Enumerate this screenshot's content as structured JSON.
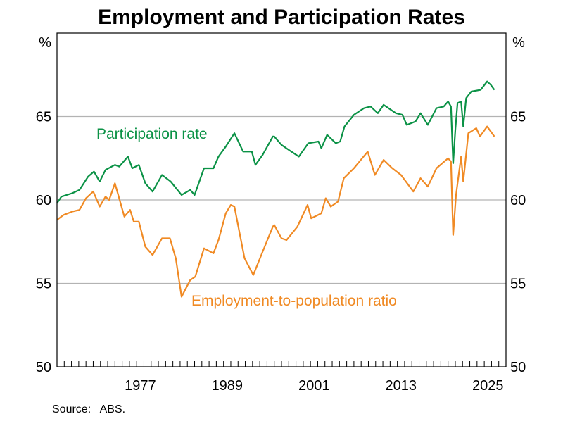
{
  "chart_data": {
    "type": "line",
    "title": "Employment and Participation Rates",
    "ylabel_left": "%",
    "ylabel_right": "%",
    "xlim": [
      1966,
      2028
    ],
    "ylim": [
      50,
      70
    ],
    "y_ticks": [
      50,
      55,
      60,
      65
    ],
    "x_tick_labels": [
      "1977",
      "1989",
      "2001",
      "2013",
      "2025"
    ],
    "grid": "horizontal",
    "source": "Source:   ABS.",
    "series": [
      {
        "name": "Participation rate",
        "color": "#0b9246",
        "points": [
          [
            1966.0,
            59.8
          ],
          [
            1966.6,
            60.2
          ],
          [
            1968.1,
            60.4
          ],
          [
            1969.1,
            60.6
          ],
          [
            1970.3,
            61.4
          ],
          [
            1971.1,
            61.7
          ],
          [
            1971.9,
            61.1
          ],
          [
            1972.7,
            61.8
          ],
          [
            1974.0,
            62.1
          ],
          [
            1974.6,
            62.0
          ],
          [
            1975.8,
            62.6
          ],
          [
            1976.4,
            61.9
          ],
          [
            1977.3,
            62.1
          ],
          [
            1978.2,
            61.0
          ],
          [
            1979.2,
            60.5
          ],
          [
            1980.5,
            61.5
          ],
          [
            1981.7,
            61.1
          ],
          [
            1983.2,
            60.3
          ],
          [
            1984.4,
            60.6
          ],
          [
            1985.0,
            60.3
          ],
          [
            1986.3,
            61.9
          ],
          [
            1987.6,
            61.9
          ],
          [
            1988.3,
            62.6
          ],
          [
            1989.3,
            63.2
          ],
          [
            1990.5,
            64.0
          ],
          [
            1991.7,
            62.9
          ],
          [
            1992.9,
            62.9
          ],
          [
            1993.4,
            62.1
          ],
          [
            1994.4,
            62.7
          ],
          [
            1995.8,
            63.8
          ],
          [
            1996.0,
            63.8
          ],
          [
            1997.0,
            63.3
          ],
          [
            1998.0,
            63.0
          ],
          [
            1999.4,
            62.6
          ],
          [
            2000.7,
            63.4
          ],
          [
            2002.1,
            63.5
          ],
          [
            2002.5,
            63.1
          ],
          [
            2003.3,
            63.9
          ],
          [
            2004.5,
            63.4
          ],
          [
            2005.1,
            63.5
          ],
          [
            2005.7,
            64.4
          ],
          [
            2007.0,
            65.1
          ],
          [
            2008.4,
            65.5
          ],
          [
            2009.3,
            65.6
          ],
          [
            2010.3,
            65.2
          ],
          [
            2011.1,
            65.7
          ],
          [
            2012.8,
            65.2
          ],
          [
            2013.7,
            65.1
          ],
          [
            2014.3,
            64.5
          ],
          [
            2015.5,
            64.7
          ],
          [
            2016.2,
            65.2
          ],
          [
            2017.2,
            64.5
          ],
          [
            2018.4,
            65.5
          ],
          [
            2019.4,
            65.6
          ],
          [
            2020.0,
            65.9
          ],
          [
            2020.4,
            65.6
          ],
          [
            2020.7,
            62.2
          ],
          [
            2021.0,
            64.2
          ],
          [
            2021.3,
            65.8
          ],
          [
            2021.8,
            65.9
          ],
          [
            2022.1,
            64.4
          ],
          [
            2022.5,
            66.1
          ],
          [
            2023.2,
            66.5
          ],
          [
            2024.5,
            66.6
          ],
          [
            2025.4,
            67.1
          ],
          [
            2025.9,
            66.9
          ],
          [
            2026.4,
            66.6
          ]
        ]
      },
      {
        "name": "Employment-to-population ratio",
        "color": "#f08a24",
        "points": [
          [
            1966.0,
            58.8
          ],
          [
            1966.9,
            59.1
          ],
          [
            1968.1,
            59.3
          ],
          [
            1969.1,
            59.4
          ],
          [
            1970.0,
            60.1
          ],
          [
            1971.0,
            60.5
          ],
          [
            1971.9,
            59.6
          ],
          [
            1972.7,
            60.2
          ],
          [
            1973.2,
            60.0
          ],
          [
            1974.0,
            61.0
          ],
          [
            1975.3,
            59.0
          ],
          [
            1976.1,
            59.4
          ],
          [
            1976.6,
            58.7
          ],
          [
            1977.3,
            58.7
          ],
          [
            1978.2,
            57.2
          ],
          [
            1979.2,
            56.7
          ],
          [
            1980.5,
            57.7
          ],
          [
            1981.6,
            57.7
          ],
          [
            1982.4,
            56.5
          ],
          [
            1983.2,
            54.2
          ],
          [
            1984.4,
            55.2
          ],
          [
            1985.1,
            55.4
          ],
          [
            1986.3,
            57.1
          ],
          [
            1987.6,
            56.8
          ],
          [
            1988.3,
            57.6
          ],
          [
            1989.3,
            59.2
          ],
          [
            1990.0,
            59.7
          ],
          [
            1990.5,
            59.6
          ],
          [
            1991.9,
            56.5
          ],
          [
            1993.1,
            55.5
          ],
          [
            1994.4,
            56.9
          ],
          [
            1995.8,
            58.4
          ],
          [
            1996.0,
            58.5
          ],
          [
            1997.0,
            57.7
          ],
          [
            1997.7,
            57.6
          ],
          [
            1999.2,
            58.4
          ],
          [
            2000.6,
            59.7
          ],
          [
            2001.1,
            58.9
          ],
          [
            2002.5,
            59.2
          ],
          [
            2003.1,
            60.1
          ],
          [
            2003.8,
            59.6
          ],
          [
            2004.8,
            59.9
          ],
          [
            2005.6,
            61.3
          ],
          [
            2007.0,
            61.9
          ],
          [
            2008.9,
            62.9
          ],
          [
            2009.9,
            61.5
          ],
          [
            2011.1,
            62.4
          ],
          [
            2012.3,
            61.9
          ],
          [
            2013.5,
            61.5
          ],
          [
            2015.2,
            60.5
          ],
          [
            2016.2,
            61.3
          ],
          [
            2017.2,
            60.8
          ],
          [
            2018.4,
            61.9
          ],
          [
            2020.0,
            62.5
          ],
          [
            2020.4,
            62.3
          ],
          [
            2020.7,
            57.9
          ],
          [
            2021.1,
            60.3
          ],
          [
            2021.8,
            62.6
          ],
          [
            2022.1,
            61.1
          ],
          [
            2022.8,
            64.0
          ],
          [
            2023.9,
            64.3
          ],
          [
            2024.4,
            63.8
          ],
          [
            2025.4,
            64.4
          ],
          [
            2026.4,
            63.8
          ]
        ]
      }
    ]
  }
}
